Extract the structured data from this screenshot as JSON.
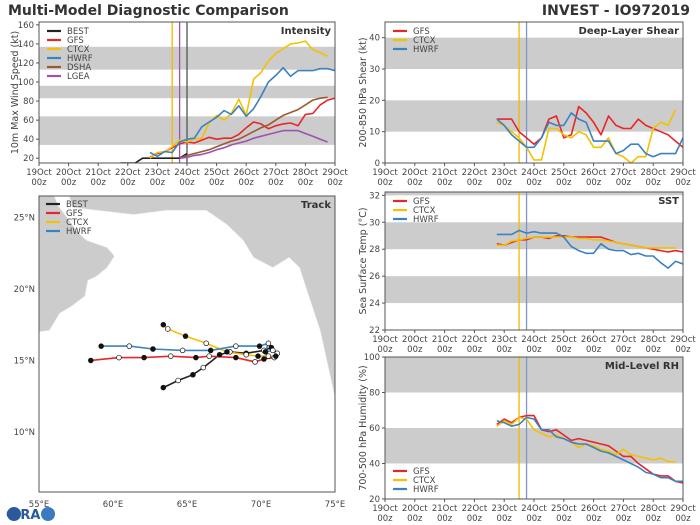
{
  "header": {
    "title": "Multi-Model Diagnostic Comparison",
    "storm": "INVEST - IO972019"
  },
  "time_axis": [
    {
      "date": "19Oct",
      "hour": "00z"
    },
    {
      "date": "20Oct",
      "hour": "00z"
    },
    {
      "date": "21Oct",
      "hour": "00z"
    },
    {
      "date": "22Oct",
      "hour": "00z"
    },
    {
      "date": "23Oct",
      "hour": "00z"
    },
    {
      "date": "24Oct",
      "hour": "00z"
    },
    {
      "date": "25Oct",
      "hour": "00z"
    },
    {
      "date": "26Oct",
      "hour": "00z"
    },
    {
      "date": "27Oct",
      "hour": "00z"
    },
    {
      "date": "28Oct",
      "hour": "00z"
    },
    {
      "date": "29Oct",
      "hour": "00z"
    }
  ],
  "chart_data": [
    {
      "id": "intensity",
      "type": "line",
      "title": "Intensity",
      "ylabel": "10m Max Wind Speed (kt)",
      "xlim": [
        "19Oct00z",
        "29Oct00z"
      ],
      "ylim": [
        15,
        163
      ],
      "grid": false,
      "legend": "top-left",
      "y_ticks": [
        20,
        40,
        60,
        80,
        100,
        120,
        140,
        160
      ],
      "bands": [
        [
          34,
          64
        ],
        [
          83,
          96
        ],
        [
          113,
          137
        ]
      ],
      "vlines": [
        {
          "time": "23Oct12z",
          "color": "#f5b800"
        },
        {
          "time": "23Oct18z",
          "color": "#a050b0"
        },
        {
          "time": "24Oct00z",
          "color": "#555555"
        }
      ],
      "x": [
        "21Oct18z",
        "22Oct00z",
        "22Oct06z",
        "22Oct12z",
        "22Oct18z",
        "23Oct00z",
        "23Oct06z",
        "23Oct12z",
        "23Oct18z",
        "24Oct00z",
        "24Oct06z",
        "24Oct12z",
        "24Oct18z",
        "25Oct00z",
        "25Oct06z",
        "25Oct12z",
        "25Oct18z",
        "26Oct00z",
        "26Oct06z",
        "26Oct12z",
        "26Oct18z",
        "27Oct00z",
        "27Oct06z",
        "27Oct12z",
        "27Oct18z",
        "28Oct00z",
        "28Oct06z",
        "28Oct12z",
        "28Oct18z",
        "29Oct00z"
      ],
      "series": [
        {
          "name": "BEST",
          "color": "#222222",
          "values": [
            15,
            15,
            15,
            20,
            20,
            20,
            20,
            20,
            20,
            25,
            null,
            null,
            null,
            null,
            null,
            null,
            null,
            null,
            null,
            null,
            null,
            null,
            null,
            null,
            null,
            null,
            null,
            null,
            null,
            null
          ]
        },
        {
          "name": "GFS",
          "color": "#e8262a",
          "values": [
            null,
            null,
            null,
            null,
            21,
            25,
            27,
            31,
            35,
            37,
            36,
            39,
            42,
            40,
            41,
            41,
            45,
            52,
            58,
            56,
            51,
            54,
            56,
            57,
            54,
            66,
            67,
            76,
            81,
            83
          ]
        },
        {
          "name": "CTCX",
          "color": "#f5c000",
          "values": [
            null,
            null,
            null,
            null,
            20,
            26,
            27,
            32,
            39,
            37,
            40,
            41,
            57,
            65,
            60,
            67,
            82,
            65,
            103,
            110,
            122,
            130,
            135,
            140,
            141,
            143,
            134,
            131,
            127,
            null
          ]
        },
        {
          "name": "HWRF",
          "color": "#3a82c0",
          "values": [
            null,
            null,
            null,
            null,
            26,
            22,
            27,
            26,
            37,
            40,
            41,
            53,
            58,
            63,
            70,
            66,
            75,
            64,
            72,
            85,
            100,
            107,
            115,
            106,
            112,
            112,
            112,
            114,
            114,
            112
          ]
        },
        {
          "name": "DSHA",
          "color": "#9a5a30",
          "values": [
            null,
            null,
            null,
            null,
            null,
            null,
            null,
            null,
            20,
            23,
            25,
            27,
            29,
            32,
            35,
            38,
            40,
            44,
            48,
            52,
            55,
            60,
            65,
            68,
            71,
            76,
            81,
            83,
            84,
            null
          ]
        },
        {
          "name": "LGEA",
          "color": "#a050b0",
          "values": [
            null,
            null,
            null,
            null,
            null,
            null,
            null,
            null,
            20,
            21,
            23,
            24,
            26,
            29,
            31,
            34,
            36,
            38,
            41,
            43,
            45,
            47,
            49,
            49,
            49,
            46,
            43,
            40,
            37,
            null
          ]
        }
      ]
    },
    {
      "id": "shear",
      "type": "line",
      "title": "Deep-Layer Shear",
      "ylabel": "200-850 hPa Shear (kt)",
      "xlim": [
        "19Oct00z",
        "29Oct00z"
      ],
      "ylim": [
        0,
        45
      ],
      "grid": false,
      "legend": "top-left",
      "y_ticks": [
        0,
        10,
        20,
        30,
        40
      ],
      "bands": [
        [
          10,
          20
        ],
        [
          30,
          40
        ]
      ],
      "vlines": [
        {
          "time": "23Oct12z",
          "color": "#f5b800"
        },
        {
          "time": "23Oct18z",
          "color": "#7f96c0"
        }
      ],
      "x": [
        "22Oct18z",
        "23Oct00z",
        "23Oct06z",
        "23Oct12z",
        "23Oct18z",
        "24Oct00z",
        "24Oct06z",
        "24Oct12z",
        "24Oct18z",
        "25Oct00z",
        "25Oct06z",
        "25Oct12z",
        "25Oct18z",
        "26Oct00z",
        "26Oct06z",
        "26Oct12z",
        "26Oct18z",
        "27Oct00z",
        "27Oct06z",
        "27Oct12z",
        "27Oct18z",
        "28Oct00z",
        "28Oct06z",
        "28Oct12z",
        "28Oct18z",
        "29Oct00z"
      ],
      "series": [
        {
          "name": "GFS",
          "color": "#e8262a",
          "values": [
            14,
            14,
            14,
            10,
            8,
            6,
            8,
            14,
            15,
            8,
            9,
            18,
            16,
            13,
            9,
            15,
            12,
            11,
            11,
            14,
            12,
            11,
            10,
            9,
            7,
            5
          ]
        },
        {
          "name": "CTCX",
          "color": "#f5c000",
          "values": [
            13,
            12,
            10,
            8,
            5,
            1,
            1,
            11,
            11,
            9,
            8,
            10,
            9,
            5,
            5,
            8,
            3,
            2,
            0,
            2,
            2,
            11,
            13,
            12,
            17,
            null
          ]
        },
        {
          "name": "HWRF",
          "color": "#3a82c0",
          "values": [
            14,
            12,
            9,
            7,
            5,
            5,
            8,
            13,
            12,
            12,
            16,
            14,
            13,
            7,
            7,
            7,
            3,
            4,
            6,
            6,
            3,
            2,
            3,
            3,
            3,
            8
          ]
        }
      ]
    },
    {
      "id": "sst",
      "type": "line",
      "title": "SST",
      "ylabel": "Sea Surface Temp (°C)",
      "xlim": [
        "19Oct00z",
        "29Oct00z"
      ],
      "ylim": [
        22,
        32.25
      ],
      "grid": false,
      "legend": "top-left",
      "y_ticks": [
        22,
        24,
        26,
        28,
        30,
        32
      ],
      "bands": [
        [
          24,
          26
        ],
        [
          28,
          30
        ],
        [
          32,
          34
        ]
      ],
      "vlines": [
        {
          "time": "23Oct12z",
          "color": "#f5b800"
        },
        {
          "time": "23Oct18z",
          "color": "#7f96c0"
        }
      ],
      "x": [
        "22Oct18z",
        "23Oct00z",
        "23Oct06z",
        "23Oct12z",
        "23Oct18z",
        "24Oct00z",
        "24Oct06z",
        "24Oct12z",
        "24Oct18z",
        "25Oct00z",
        "25Oct06z",
        "25Oct12z",
        "25Oct18z",
        "26Oct00z",
        "26Oct06z",
        "26Oct12z",
        "26Oct18z",
        "27Oct00z",
        "27Oct06z",
        "27Oct12z",
        "27Oct18z",
        "28Oct00z",
        "28Oct06z",
        "28Oct12z",
        "28Oct18z",
        "29Oct00z"
      ],
      "series": [
        {
          "name": "GFS",
          "color": "#e8262a",
          "values": [
            28.4,
            28.3,
            28.5,
            28.7,
            28.7,
            28.9,
            28.9,
            28.8,
            29.0,
            29.0,
            28.9,
            28.9,
            28.9,
            28.9,
            28.9,
            28.7,
            28.5,
            28.4,
            28.3,
            28.2,
            28.1,
            28.0,
            27.9,
            27.8,
            27.9,
            27.8
          ]
        },
        {
          "name": "CTCX",
          "color": "#f5c000",
          "values": [
            28.3,
            28.3,
            28.6,
            28.7,
            28.8,
            28.9,
            28.9,
            28.9,
            28.9,
            28.9,
            28.9,
            28.8,
            28.8,
            28.7,
            28.7,
            28.6,
            28.5,
            28.4,
            28.3,
            28.2,
            28.1,
            28.1,
            28.1,
            28.1,
            28.1,
            null
          ]
        },
        {
          "name": "HWRF",
          "color": "#3a82c0",
          "values": [
            29.1,
            29.1,
            29.1,
            29.4,
            29.2,
            29.3,
            29.2,
            29.2,
            29.2,
            28.9,
            28.2,
            27.9,
            27.7,
            27.7,
            28.4,
            28.0,
            27.9,
            27.9,
            27.6,
            27.7,
            27.5,
            27.5,
            27.0,
            26.6,
            27.1,
            26.9
          ]
        }
      ]
    },
    {
      "id": "rh",
      "type": "line",
      "title": "Mid-Level RH",
      "ylabel": "700-500 hPa Humidity (%)",
      "xlim": [
        "19Oct00z",
        "29Oct00z"
      ],
      "ylim": [
        20,
        100
      ],
      "grid": false,
      "legend": "bottom-left",
      "y_ticks": [
        20,
        40,
        60,
        80,
        100
      ],
      "bands": [
        [
          40,
          60
        ],
        [
          80,
          100
        ]
      ],
      "vlines": [
        {
          "time": "23Oct12z",
          "color": "#f5b800"
        },
        {
          "time": "23Oct18z",
          "color": "#7f96c0"
        }
      ],
      "x": [
        "22Oct18z",
        "23Oct00z",
        "23Oct06z",
        "23Oct12z",
        "23Oct18z",
        "24Oct00z",
        "24Oct06z",
        "24Oct12z",
        "24Oct18z",
        "25Oct00z",
        "25Oct06z",
        "25Oct12z",
        "25Oct18z",
        "26Oct00z",
        "26Oct06z",
        "26Oct12z",
        "26Oct18z",
        "27Oct00z",
        "27Oct06z",
        "27Oct12z",
        "27Oct18z",
        "28Oct00z",
        "28Oct06z",
        "28Oct12z",
        "28Oct18z",
        "29Oct00z"
      ],
      "series": [
        {
          "name": "GFS",
          "color": "#e8262a",
          "values": [
            62,
            65,
            63,
            66,
            67,
            67,
            59,
            58,
            59,
            56,
            53,
            54,
            53,
            52,
            51,
            50,
            47,
            44,
            44,
            40,
            37,
            34,
            33,
            33,
            30,
            29
          ]
        },
        {
          "name": "CTCX",
          "color": "#f5c000",
          "values": [
            61,
            64,
            62,
            66,
            65,
            59,
            57,
            55,
            56,
            54,
            52,
            49,
            51,
            50,
            48,
            47,
            45,
            48,
            45,
            44,
            43,
            42,
            43,
            41,
            41,
            null
          ]
        },
        {
          "name": "HWRF",
          "color": "#3a82c0",
          "values": [
            64,
            63,
            61,
            62,
            66,
            65,
            59,
            59,
            55,
            54,
            52,
            51,
            51,
            49,
            47,
            46,
            44,
            42,
            40,
            38,
            35,
            34,
            32,
            32,
            30,
            30
          ]
        }
      ]
    }
  ],
  "track": {
    "title": "Track",
    "legend": "top-left",
    "lon_range": [
      55,
      75
    ],
    "lat_range": [
      5.8,
      26.5
    ],
    "lon_ticks": [
      {
        "value": 55,
        "label": "55°E"
      },
      {
        "value": 60,
        "label": "60°E"
      },
      {
        "value": 65,
        "label": "65°E"
      },
      {
        "value": 70,
        "label": "70°E"
      },
      {
        "value": 75,
        "label": "75°E"
      }
    ],
    "lat_ticks": [
      {
        "value": 10,
        "label": "10°N"
      },
      {
        "value": 15,
        "label": "15°N"
      },
      {
        "value": 20,
        "label": "20°N"
      },
      {
        "value": 25,
        "label": "25°N"
      }
    ],
    "land_color": "#cccccc",
    "land": [
      [
        [
          55,
          17.0
        ],
        [
          55.7,
          17.1
        ],
        [
          56.4,
          18.3
        ],
        [
          57.2,
          18.8
        ],
        [
          58.1,
          19.5
        ],
        [
          58.3,
          20.6
        ],
        [
          58.9,
          20.9
        ],
        [
          59.6,
          21.5
        ],
        [
          60.1,
          22.3
        ],
        [
          59.6,
          22.9
        ],
        [
          58.2,
          23.4
        ],
        [
          57.5,
          24.1
        ],
        [
          56.9,
          25.0
        ],
        [
          56.3,
          25.8
        ],
        [
          56.0,
          26.6
        ],
        [
          55,
          26.6
        ]
      ],
      [
        [
          57.0,
          26.6
        ],
        [
          57.3,
          25.7
        ],
        [
          58.9,
          25.5
        ],
        [
          61.4,
          25.2
        ],
        [
          63.6,
          25.5
        ],
        [
          66.3,
          25.5
        ],
        [
          67.7,
          24.5
        ],
        [
          68.8,
          23.4
        ],
        [
          69.5,
          22.2
        ],
        [
          70.8,
          21.5
        ],
        [
          71.9,
          22.2
        ],
        [
          72.6,
          21.5
        ],
        [
          73.1,
          19.9
        ],
        [
          74.0,
          17.1
        ],
        [
          75,
          12.4
        ],
        [
          75,
          26.6
        ]
      ]
    ],
    "series": [
      {
        "name": "BEST",
        "color": "#222222",
        "points": [
          [
            63.4,
            13.1
          ],
          [
            64.4,
            13.6
          ],
          [
            65.4,
            14.0
          ],
          [
            66.1,
            14.5
          ],
          [
            67.2,
            15.4
          ],
          [
            67.9,
            15.6
          ],
          [
            69.0,
            15.5
          ],
          [
            70.2,
            15.7
          ],
          [
            70.7,
            15.9
          ],
          [
            71.1,
            15.5
          ]
        ]
      },
      {
        "name": "GFS",
        "color": "#e8262a",
        "points": [
          [
            58.5,
            15.0
          ],
          [
            60.4,
            15.2
          ],
          [
            62.1,
            15.2
          ],
          [
            63.9,
            15.3
          ],
          [
            65.6,
            15.2
          ],
          [
            66.5,
            15.3
          ],
          [
            68.3,
            15.2
          ],
          [
            69.6,
            14.9
          ],
          [
            70.2,
            15.1
          ],
          [
            70.9,
            15.2
          ]
        ]
      },
      {
        "name": "CTCX",
        "color": "#f5c000",
        "points": [
          [
            63.4,
            17.5
          ],
          [
            63.7,
            17.2
          ],
          [
            64.9,
            16.7
          ],
          [
            66.3,
            16.2
          ],
          [
            67.7,
            15.6
          ],
          [
            69.0,
            15.4
          ],
          [
            69.8,
            15.3
          ],
          [
            70.5,
            15.3
          ],
          [
            71.0,
            15.3
          ]
        ]
      },
      {
        "name": "HWRF",
        "color": "#3a82c0",
        "points": [
          [
            59.2,
            16.0
          ],
          [
            61.1,
            16.0
          ],
          [
            62.7,
            15.8
          ],
          [
            64.7,
            15.7
          ],
          [
            66.6,
            15.7
          ],
          [
            68.3,
            16.0
          ],
          [
            69.9,
            16.0
          ],
          [
            70.5,
            16.2
          ],
          [
            70.3,
            15.6
          ],
          [
            70.8,
            15.7
          ]
        ]
      }
    ]
  },
  "logo": {
    "text": "CIRA"
  }
}
